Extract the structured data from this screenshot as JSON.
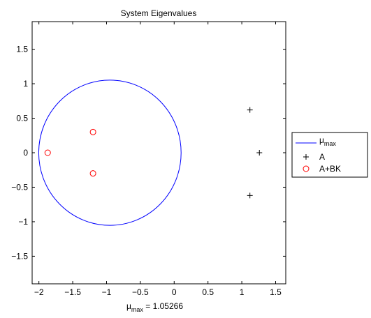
{
  "chart_data": {
    "type": "scatter",
    "title": "System Eigenvalues",
    "xlabel_main": "μ",
    "xlabel_sub": "max",
    "xlabel_value": " = 1.05266",
    "xlim": [
      -2.1,
      1.65
    ],
    "ylim": [
      -1.9,
      1.9
    ],
    "xticks": [
      -2,
      -1.5,
      -1,
      -0.5,
      0,
      0.5,
      1,
      1.5
    ],
    "xtick_labels": [
      "−2",
      "−1.5",
      "−1",
      "−0.5",
      "0",
      "0.5",
      "1",
      "1.5"
    ],
    "yticks": [
      -1.5,
      -1,
      -0.5,
      0,
      0.5,
      1,
      1.5
    ],
    "ytick_labels": [
      "−1.5",
      "−1",
      "−0.5",
      "0",
      "0.5",
      "1",
      "1.5"
    ],
    "grid": false,
    "legend_position": "outside-right",
    "circle": {
      "center": [
        -0.95,
        0
      ],
      "radius": 1.05266,
      "color": "#0000ff"
    },
    "series": [
      {
        "name": "μmax",
        "legend_main": "μ",
        "legend_sub": "max",
        "marker": "line",
        "color": "#0000ff"
      },
      {
        "name": "A",
        "legend_main": "A",
        "marker": "plus",
        "color": "#000000",
        "points": [
          [
            1.12,
            0.62
          ],
          [
            1.26,
            0.0
          ],
          [
            1.12,
            -0.62
          ]
        ]
      },
      {
        "name": "A+BK",
        "legend_main": "A+BK",
        "marker": "circle",
        "color": "#ff0000",
        "points": [
          [
            -1.87,
            0.0
          ],
          [
            -1.2,
            0.3
          ],
          [
            -1.2,
            -0.3
          ]
        ]
      }
    ]
  }
}
